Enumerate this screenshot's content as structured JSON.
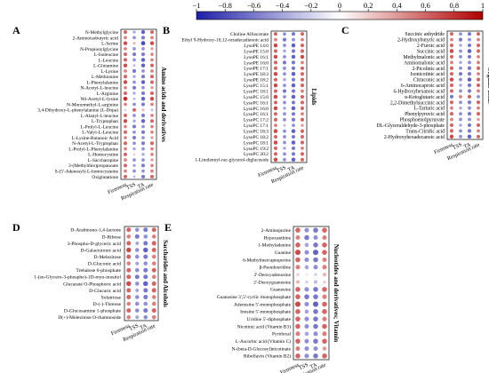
{
  "colorbar": {
    "ticks": [
      "−1",
      "−0.8",
      "−0.6",
      "−0.4",
      "−0.2",
      "0",
      "0.2",
      "0.4",
      "0.6",
      "0.8",
      "1"
    ],
    "range": [
      -1,
      1
    ],
    "low_color": "#1f1fa8",
    "mid_color": "#ffffff",
    "high_color": "#b00000"
  },
  "chart_data": [
    {
      "type": "heatmap",
      "panel_letter": "A",
      "title": "Amino acids and derivatives",
      "columns": [
        "Firmness",
        "TSS",
        "TA",
        "Respiration rate"
      ],
      "rows": [
        {
          "name": "N-Methylglycine",
          "values": [
            0.6,
            -0.4,
            -0.7,
            0.6
          ]
        },
        {
          "name": "2-Aminoisobutyric acid",
          "values": [
            0.5,
            -0.5,
            -0.6,
            0.5
          ]
        },
        {
          "name": "L-Serine",
          "values": [
            0.7,
            0.3,
            -0.8,
            0.7
          ]
        },
        {
          "name": "N-Propionylglycine",
          "values": [
            0.5,
            -0.5,
            -0.5,
            0.4
          ]
        },
        {
          "name": "L-Isoleucine",
          "values": [
            0.6,
            -0.6,
            -0.6,
            0.5
          ]
        },
        {
          "name": "L-Leucine",
          "values": [
            0.6,
            -0.5,
            -0.7,
            0.5
          ]
        },
        {
          "name": "L-Glutamine",
          "values": [
            0.7,
            -0.3,
            -0.7,
            0.6
          ]
        },
        {
          "name": "L-Lysine",
          "values": [
            0.5,
            -0.6,
            -0.5,
            0.5
          ]
        },
        {
          "name": "L-Methionine",
          "values": [
            0.6,
            -0.4,
            -0.6,
            0.6
          ]
        },
        {
          "name": "L-Phenylalanine",
          "values": [
            0.7,
            -0.5,
            -0.7,
            0.6
          ]
        },
        {
          "name": "N-Acetyl-L-leucine",
          "values": [
            0.5,
            -0.6,
            -0.5,
            0.4
          ]
        },
        {
          "name": "L-Arginine",
          "values": [
            0.6,
            -0.4,
            -0.6,
            0.6
          ]
        },
        {
          "name": "N6-Acetyl-L-lysine",
          "values": [
            0.8,
            -0.3,
            -0.7,
            0.7
          ]
        },
        {
          "name": "N-Monomethyl-L-arginine",
          "values": [
            0.5,
            -0.5,
            -0.6,
            0.5
          ]
        },
        {
          "name": "3,4-Dihydroxy-L-phenylalanine (L-Dopa)",
          "values": [
            -0.2,
            0.6,
            0.3,
            -0.3
          ]
        },
        {
          "name": "L-Alanyl-L-leucine",
          "values": [
            0.6,
            -0.5,
            -0.6,
            0.5
          ]
        },
        {
          "name": "L-Tryptophan",
          "values": [
            0.7,
            -0.4,
            -0.7,
            0.6
          ]
        },
        {
          "name": "L-Prolyl-L-Leucine",
          "values": [
            0.5,
            -0.6,
            -0.5,
            0.5
          ]
        },
        {
          "name": "L-Valyl-L-Leucine",
          "values": [
            0.6,
            -0.5,
            -0.6,
            0.5
          ]
        },
        {
          "name": "L-Lysine-Butanoic Acid",
          "values": [
            0.5,
            -0.6,
            -0.5,
            0.4
          ]
        },
        {
          "name": "N-Acetyl-L-Tryptophan",
          "values": [
            0.6,
            -0.5,
            -0.6,
            0.6
          ]
        },
        {
          "name": "L-Prolyl-L-Phenylalanine",
          "values": [
            0.5,
            -0.4,
            -0.5,
            0.5
          ]
        },
        {
          "name": "L-Homocystine",
          "values": [
            0.6,
            0.2,
            -0.4,
            0.5
          ]
        },
        {
          "name": "L-Saccharopine",
          "values": [
            0.5,
            -0.5,
            -0.5,
            0.4
          ]
        },
        {
          "name": "3-(Methylthio)propanoate",
          "values": [
            0.6,
            -0.4,
            -0.6,
            0.5
          ]
        },
        {
          "name": "S-(5'-Adenosyl)-L-homocysteine",
          "values": [
            0.5,
            -0.5,
            -0.5,
            0.5
          ]
        },
        {
          "name": "Oxiglutatione",
          "values": [
            0.6,
            -0.3,
            -0.6,
            0.6
          ]
        }
      ]
    },
    {
      "type": "heatmap",
      "panel_letter": "B",
      "title": "Lipids",
      "columns": [
        "Firmness",
        "TSS",
        "TA",
        "Respiration rate"
      ],
      "rows": [
        {
          "name": "Choline Alfoscerate",
          "values": [
            0.6,
            -0.5,
            -0.6,
            0.6
          ]
        },
        {
          "name": "Ethyl 9-Hydroxy-10,12-octadecadienoic acid",
          "values": [
            0.5,
            -0.6,
            -0.5,
            0.5
          ]
        },
        {
          "name": "LysoPE 14:0",
          "values": [
            0.7,
            -0.5,
            -0.7,
            0.6
          ]
        },
        {
          "name": "LysoPE 15:0",
          "values": [
            0.6,
            -0.4,
            -0.6,
            0.6
          ]
        },
        {
          "name": "LysoPE 16:1",
          "values": [
            0.7,
            -0.5,
            -0.7,
            0.7
          ]
        },
        {
          "name": "LysoPE 16:0",
          "values": [
            0.6,
            -0.6,
            -0.6,
            0.5
          ]
        },
        {
          "name": "LysoPE 17:1",
          "values": [
            0.6,
            -0.5,
            -0.6,
            0.6
          ]
        },
        {
          "name": "LysoPE 18:3",
          "values": [
            0.7,
            -0.5,
            -0.7,
            0.6
          ]
        },
        {
          "name": "LysoPE 18:2",
          "values": [
            0.6,
            -0.4,
            -0.6,
            0.6
          ]
        },
        {
          "name": "LysoPC 15:1",
          "values": [
            0.7,
            -0.5,
            -0.7,
            0.6
          ]
        },
        {
          "name": "LysoPC 18:1",
          "values": [
            0.6,
            -0.6,
            -0.6,
            0.5
          ]
        },
        {
          "name": "LysoPC 15:0",
          "values": [
            0.7,
            -0.5,
            -0.7,
            0.6
          ]
        },
        {
          "name": "LysoPC 16:1",
          "values": [
            0.6,
            -0.5,
            -0.6,
            0.6
          ]
        },
        {
          "name": "LysoPC 16:0",
          "values": [
            0.7,
            -0.4,
            -0.7,
            0.6
          ]
        },
        {
          "name": "LysoPC 16:1",
          "values": [
            0.6,
            -0.5,
            -0.6,
            0.5
          ]
        },
        {
          "name": "LysoPC 17:2",
          "values": [
            0.6,
            -0.5,
            -0.6,
            0.6
          ]
        },
        {
          "name": "LysoPC 17:1",
          "values": [
            0.5,
            -0.3,
            -0.5,
            0.4
          ]
        },
        {
          "name": "LysoPC 18:3",
          "values": [
            0.7,
            -0.5,
            -0.7,
            0.6
          ]
        },
        {
          "name": "LysoPC 18:2",
          "values": [
            0.6,
            -0.5,
            -0.6,
            0.6
          ]
        },
        {
          "name": "LysoPC 18:1",
          "values": [
            0.7,
            -0.5,
            -0.7,
            0.6
          ]
        },
        {
          "name": "LysoPC 19:2",
          "values": [
            0.6,
            -0.4,
            -0.6,
            0.5
          ]
        },
        {
          "name": "LysoPC 20:2",
          "values": [
            0.6,
            -0.5,
            -0.6,
            0.6
          ]
        },
        {
          "name": "1-Linolenoyl-rac-glycerol-diglucoside",
          "values": [
            0.7,
            -0.5,
            -0.7,
            0.6
          ]
        }
      ]
    },
    {
      "type": "heatmap",
      "panel_letter": "C",
      "title": "Organic acids",
      "columns": [
        "Firmness",
        "TSS",
        "TA",
        "Respiration rate"
      ],
      "rows": [
        {
          "name": "Succinic anhydride",
          "values": [
            0.6,
            -0.5,
            -0.6,
            0.6
          ]
        },
        {
          "name": "2-Hydroxybutyric acid",
          "values": [
            0.5,
            -0.6,
            -0.5,
            0.5
          ]
        },
        {
          "name": "2-Furoic acid",
          "values": [
            0.6,
            -0.4,
            -0.6,
            0.6
          ]
        },
        {
          "name": "Succinic acid",
          "values": [
            0.7,
            -0.5,
            -0.7,
            0.6
          ]
        },
        {
          "name": "Methylmalonic acid",
          "values": [
            0.6,
            -0.5,
            -0.6,
            0.5
          ]
        },
        {
          "name": "Aminomalonic acid",
          "values": [
            0.5,
            -0.4,
            -0.5,
            0.5
          ]
        },
        {
          "name": "2-Picolinic acid",
          "values": [
            0.6,
            -0.5,
            -0.6,
            0.6
          ]
        },
        {
          "name": "Isonicotinic acid",
          "values": [
            0.6,
            -0.6,
            -0.6,
            0.5
          ]
        },
        {
          "name": "Citraconic acid",
          "values": [
            0.7,
            -0.5,
            -0.7,
            0.6
          ]
        },
        {
          "name": "6-Aminocaproic acid",
          "values": [
            0.6,
            -0.4,
            -0.6,
            0.6
          ]
        },
        {
          "name": "6-Hydroxyhexanoic acid",
          "values": [
            0.6,
            -0.5,
            -0.6,
            0.5
          ]
        },
        {
          "name": "α-Ketoglutaric acid",
          "values": [
            -0.6,
            0.5,
            0.6,
            -0.5
          ]
        },
        {
          "name": "2,2-Dimethylsuccinic acid",
          "values": [
            0.6,
            -0.5,
            -0.6,
            0.6
          ]
        },
        {
          "name": "L-Tartaric acid",
          "values": [
            0.5,
            -0.4,
            -0.5,
            0.5
          ]
        },
        {
          "name": "Phenylpyruvic acid",
          "values": [
            0.6,
            -0.5,
            -0.6,
            0.6
          ]
        },
        {
          "name": "Phosphoenolpyruvate",
          "values": [
            0.5,
            -0.5,
            -0.5,
            0.4
          ]
        },
        {
          "name": "DL-Glyceraldehyde-3-phosphate",
          "values": [
            0.6,
            -0.4,
            -0.6,
            0.6
          ]
        },
        {
          "name": "Trans-Citridic acid",
          "values": [
            0.6,
            -0.5,
            -0.6,
            0.5
          ]
        },
        {
          "name": "2-Hydroxyhexadecanoic acid",
          "values": [
            0.7,
            -0.5,
            -0.7,
            0.6
          ]
        }
      ]
    },
    {
      "type": "heatmap",
      "panel_letter": "D",
      "title": "Saccharides and Alcohols",
      "columns": [
        "Firmness",
        "TSS",
        "TA",
        "Respiration rate"
      ],
      "rows": [
        {
          "name": "D-Arabinono-1,4-lactone",
          "values": [
            0.6,
            -0.5,
            -0.6,
            0.6
          ]
        },
        {
          "name": "D-Ribose",
          "values": [
            0.5,
            -0.6,
            -0.5,
            0.5
          ]
        },
        {
          "name": "3-Phospho-D-glyceric acid",
          "values": [
            0.6,
            -0.4,
            -0.6,
            0.6
          ]
        },
        {
          "name": "D-Galacturonic acid",
          "values": [
            0.7,
            -0.5,
            -0.7,
            0.6
          ]
        },
        {
          "name": "D-Melezitose",
          "values": [
            0.6,
            -0.5,
            -0.6,
            0.5
          ]
        },
        {
          "name": "D-Gluconic acid",
          "values": [
            0.5,
            -0.4,
            -0.5,
            0.5
          ]
        },
        {
          "name": "Trehalose 6-phosphate",
          "values": [
            0.6,
            -0.5,
            -0.6,
            0.6
          ]
        },
        {
          "name": "1-(sn-Glycero-3-phospho)-1D-myo-inositol",
          "values": [
            0.6,
            -0.6,
            -0.6,
            0.5
          ]
        },
        {
          "name": "Glucarate O-Phosphoric acid",
          "values": [
            0.7,
            -0.5,
            -0.7,
            0.6
          ]
        },
        {
          "name": "D-Glucaric acid",
          "values": [
            0.6,
            -0.4,
            -0.6,
            0.6
          ]
        },
        {
          "name": "Solatriose",
          "values": [
            0.6,
            -0.5,
            -0.6,
            0.5
          ]
        },
        {
          "name": "D-(-)-Threose",
          "values": [
            0.5,
            -0.5,
            -0.5,
            0.5
          ]
        },
        {
          "name": "D-Glucosamine 1-phosphate",
          "values": [
            0.6,
            -0.5,
            -0.6,
            0.6
          ]
        },
        {
          "name": "D(+)-Melezitose O-rhamnoside",
          "values": [
            0.5,
            -0.4,
            -0.5,
            0.5
          ]
        }
      ]
    },
    {
      "type": "heatmap",
      "panel_letter": "E",
      "title": "Nucleotides and derivatives; Vitamin",
      "columns": [
        "Firmness",
        "TSS",
        "TA",
        "Respiration rate"
      ],
      "rows": [
        {
          "name": "2-Aminopurine",
          "values": [
            0.6,
            -0.5,
            -0.6,
            0.6
          ]
        },
        {
          "name": "Hypoxanthine",
          "values": [
            0.5,
            -0.6,
            -0.5,
            0.5
          ]
        },
        {
          "name": "1-Methyladenine",
          "values": [
            0.6,
            -0.4,
            -0.6,
            0.6
          ]
        },
        {
          "name": "Guanine",
          "values": [
            0.7,
            -0.5,
            -0.7,
            0.6
          ]
        },
        {
          "name": "6-Methylmercaptopurine",
          "values": [
            0.6,
            -0.5,
            -0.6,
            0.5
          ]
        },
        {
          "name": "β-Pseudouridine",
          "values": [
            0.5,
            -0.4,
            -0.5,
            0.5
          ]
        },
        {
          "name": "2'-Deoxyadenosine",
          "values": [
            0.2,
            0.1,
            -0.2,
            0.3
          ]
        },
        {
          "name": "2'-Deoxyguanosine",
          "values": [
            0.3,
            -0.2,
            -0.3,
            0.2
          ]
        },
        {
          "name": "Guanosine",
          "values": [
            0.6,
            -0.5,
            -0.6,
            0.6
          ]
        },
        {
          "name": "Guanosine 3',5'-cyclic monophosphate",
          "values": [
            0.6,
            -0.6,
            -0.6,
            0.5
          ]
        },
        {
          "name": "Adenosine 5'-monophosphate",
          "values": [
            0.7,
            -0.5,
            -0.7,
            0.6
          ]
        },
        {
          "name": "Inosine 5'-monophosphate",
          "values": [
            0.6,
            -0.4,
            -0.6,
            0.6
          ]
        },
        {
          "name": "Uridine 5'-diphosphate",
          "values": [
            0.6,
            -0.5,
            -0.6,
            0.5
          ]
        },
        {
          "name": "Nicotinic acid (Vitamin B3)",
          "values": [
            0.6,
            -0.5,
            -0.6,
            0.6
          ]
        },
        {
          "name": "Pyridoxal",
          "values": [
            0.5,
            -0.4,
            -0.5,
            0.5
          ]
        },
        {
          "name": "L-Ascorbic acid (Vitamin C)",
          "values": [
            0.6,
            -0.5,
            -0.6,
            0.6
          ]
        },
        {
          "name": "N-(beta-D-Glucosyl)nicotinate",
          "values": [
            0.5,
            -0.5,
            -0.5,
            0.4
          ]
        },
        {
          "name": "Riboflavin (Vitamin B2)",
          "values": [
            0.6,
            -0.5,
            -0.6,
            0.6
          ]
        }
      ]
    }
  ]
}
